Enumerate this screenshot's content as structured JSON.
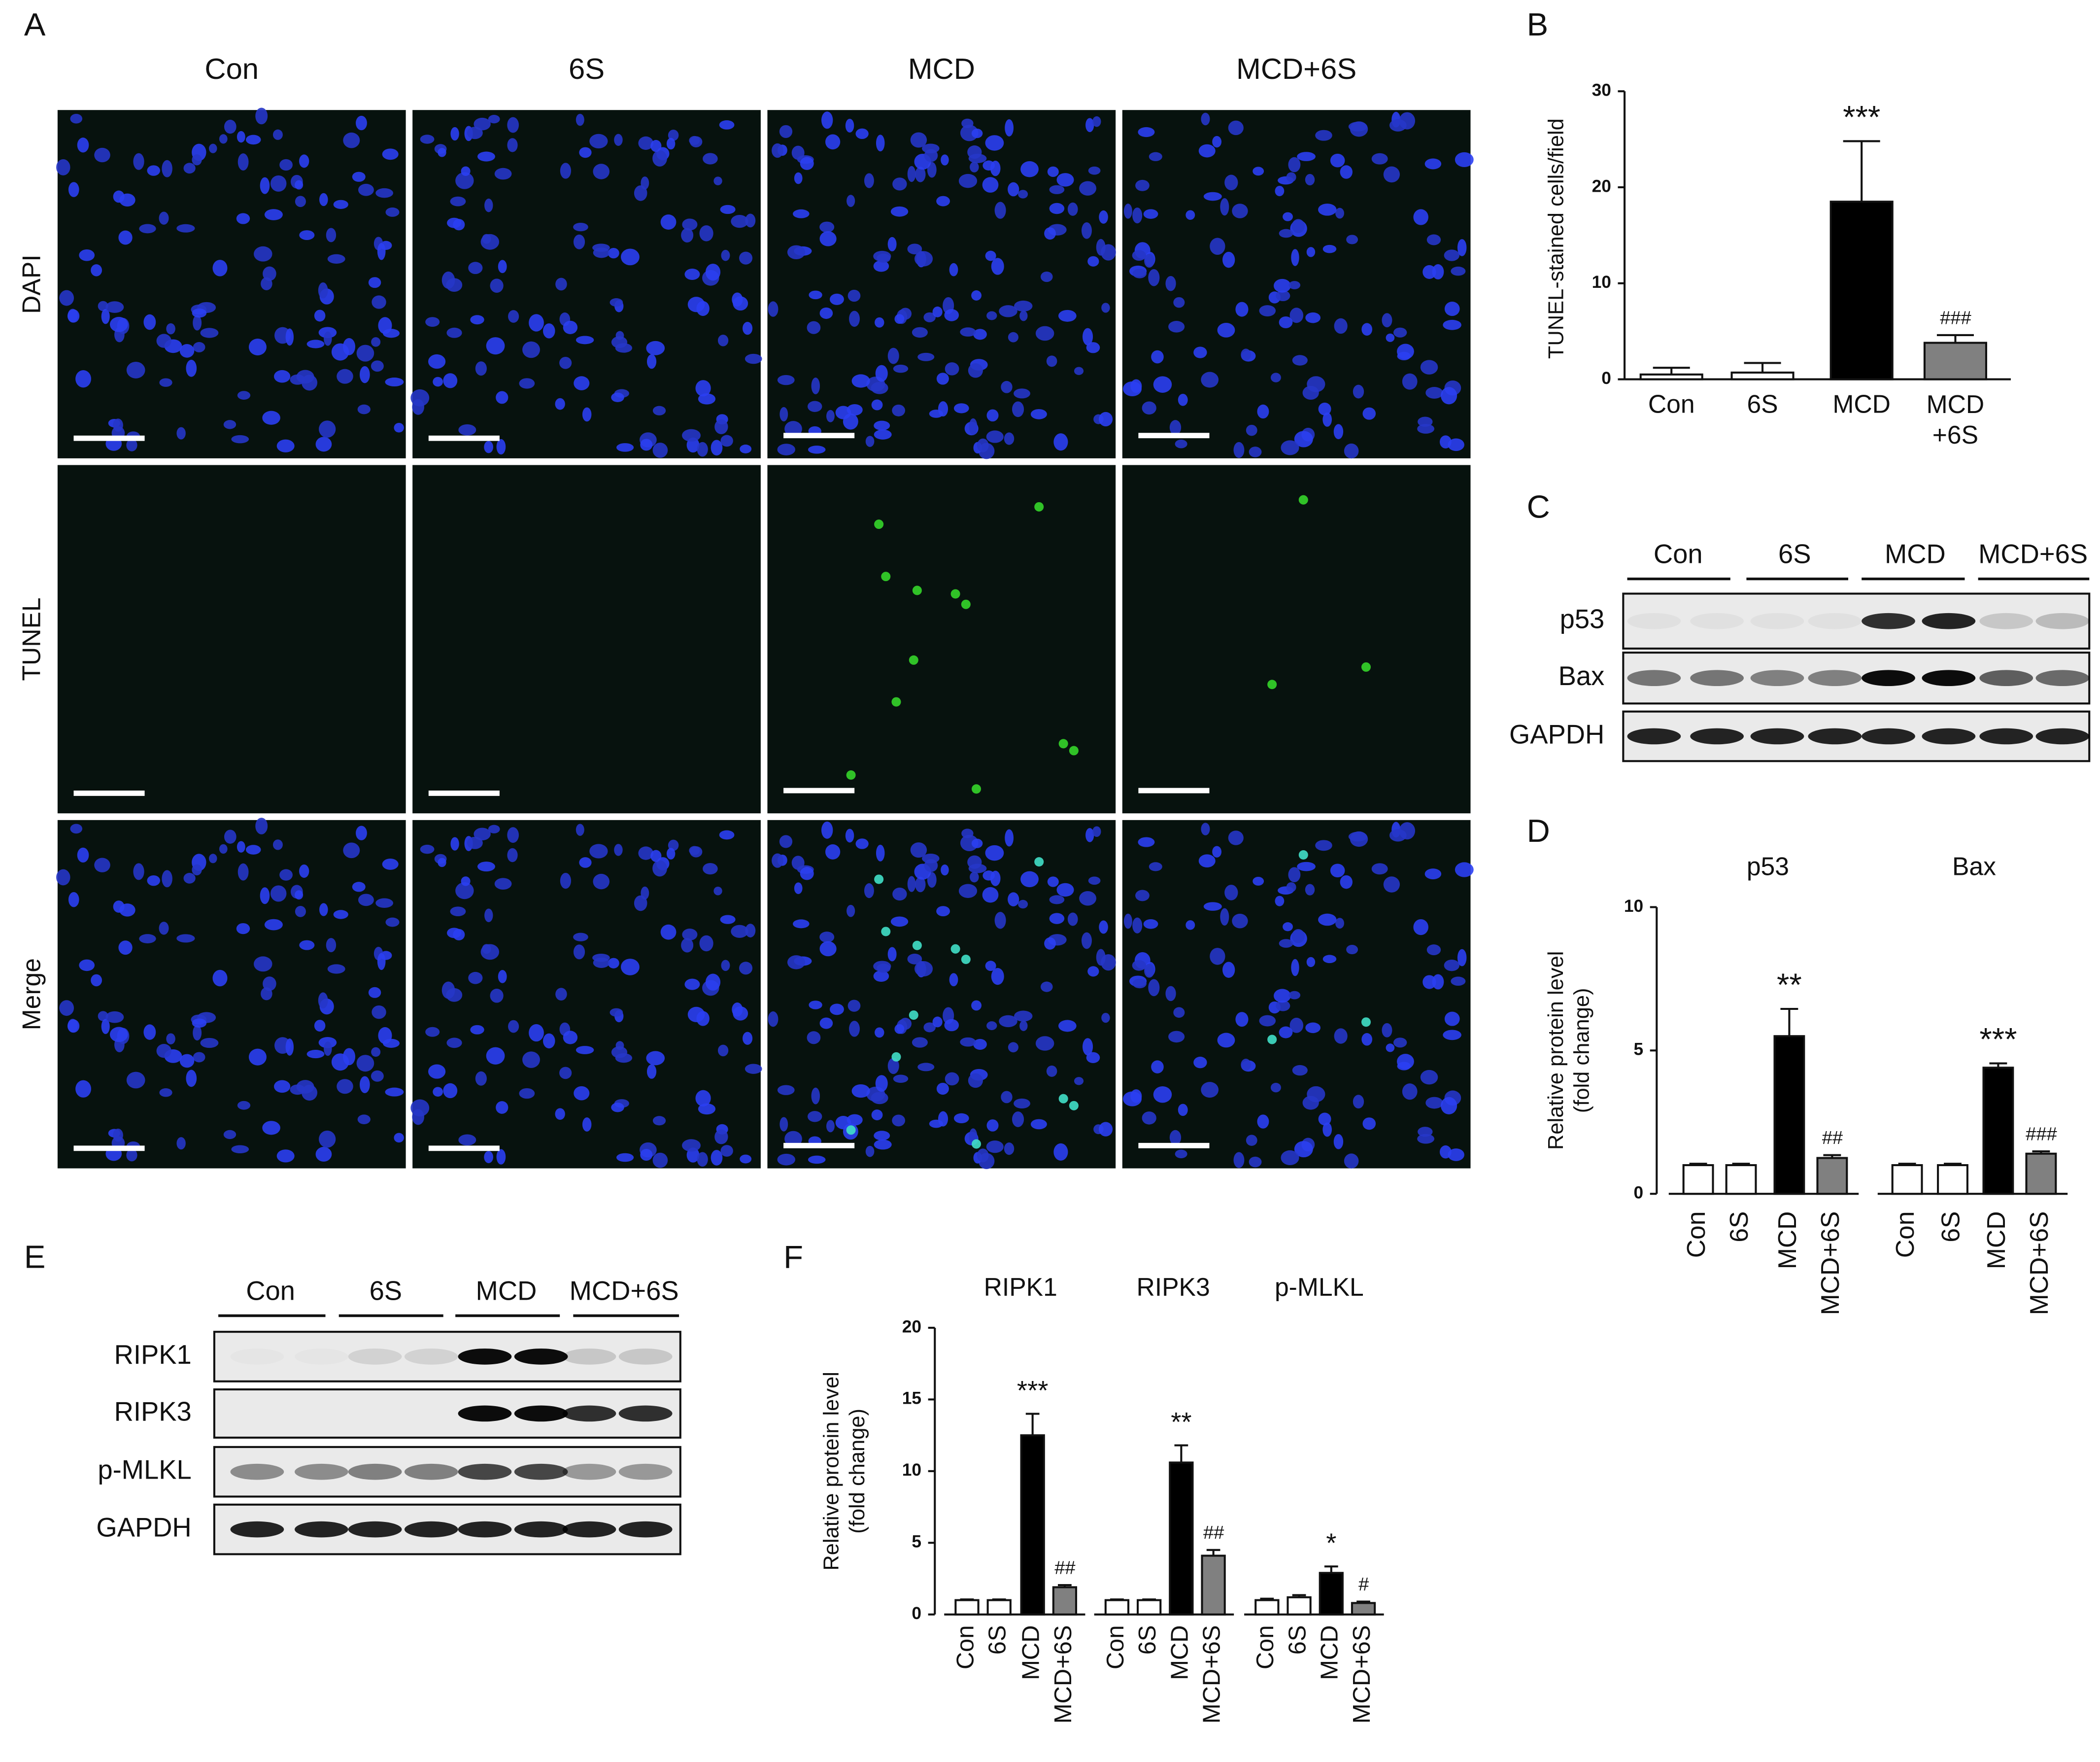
{
  "panels": {
    "letters": [
      "A",
      "B",
      "C",
      "D",
      "E",
      "F"
    ],
    "A": {
      "columns": [
        "Con",
        "6S",
        "MCD",
        "MCD+6S"
      ],
      "rows": [
        "DAPI",
        "TUNEL",
        "Merge"
      ]
    },
    "C": {
      "lanes": [
        "Con",
        "6S",
        "MCD",
        "MCD+6S"
      ],
      "rows": [
        "p53",
        "Bax",
        "GAPDH"
      ]
    },
    "E": {
      "lanes": [
        "Con",
        "6S",
        "MCD",
        "MCD+6S"
      ],
      "rows": [
        "RIPK1",
        "RIPK3",
        "p-MLKL",
        "GAPDH"
      ]
    }
  },
  "chart_data": [
    {
      "type": "bar",
      "ylabel": "TUNEL-stained cells/field",
      "categories": [
        "Con",
        "6S",
        "MCD",
        "MCD\n+6S"
      ],
      "values": [
        0.5,
        0.7,
        18.5,
        3.8
      ],
      "errors": [
        0.7,
        1.0,
        6.3,
        0.8
      ],
      "annotations": [
        null,
        null,
        "***",
        "###"
      ],
      "colors": [
        "#ffffff",
        "#ffffff",
        "#000000",
        "#808080"
      ],
      "ylim": [
        0,
        30
      ],
      "yticks": [
        0,
        10,
        20,
        30
      ]
    },
    {
      "type": "bar",
      "ylabel": "Relative protein level\n(fold change)",
      "groups": [
        {
          "name": "p53",
          "categories": [
            "Con",
            "6S",
            "MCD",
            "MCD+6S"
          ],
          "values": [
            1,
            1,
            5.5,
            1.25
          ],
          "errors": [
            0.05,
            0.05,
            0.95,
            0.1
          ],
          "annotations": [
            null,
            null,
            "**",
            "##"
          ]
        },
        {
          "name": "Bax",
          "categories": [
            "Con",
            "6S",
            "MCD",
            "MCD+6S"
          ],
          "values": [
            1,
            1,
            4.4,
            1.4
          ],
          "errors": [
            0.05,
            0.05,
            0.15,
            0.08
          ],
          "annotations": [
            null,
            null,
            "***",
            "###"
          ]
        }
      ],
      "colors": [
        "#ffffff",
        "#ffffff",
        "#000000",
        "#808080"
      ],
      "ylim": [
        0,
        10
      ],
      "yticks": [
        0,
        5,
        10
      ]
    },
    {
      "type": "bar",
      "ylabel": "Relative protein level\n(fold change)",
      "groups": [
        {
          "name": "RIPK1",
          "categories": [
            "Con",
            "6S",
            "MCD",
            "MCD+6S"
          ],
          "values": [
            1,
            1,
            12.5,
            1.9
          ],
          "errors": [
            0.05,
            0.05,
            1.5,
            0.15
          ],
          "annotations": [
            null,
            null,
            "***",
            "##"
          ]
        },
        {
          "name": "RIPK3",
          "categories": [
            "Con",
            "6S",
            "MCD",
            "MCD+6S"
          ],
          "values": [
            1,
            1,
            10.6,
            4.1
          ],
          "errors": [
            0.05,
            0.05,
            1.2,
            0.4
          ],
          "annotations": [
            null,
            null,
            "**",
            "##"
          ]
        },
        {
          "name": "p-MLKL",
          "categories": [
            "Con",
            "6S",
            "MCD",
            "MCD+6S"
          ],
          "values": [
            1,
            1.2,
            2.9,
            0.8
          ],
          "errors": [
            0.1,
            0.15,
            0.45,
            0.1
          ],
          "annotations": [
            null,
            null,
            "*",
            "#"
          ]
        }
      ],
      "colors": [
        "#ffffff",
        "#ffffff",
        "#000000",
        "#808080"
      ],
      "ylim": [
        0,
        20
      ],
      "yticks": [
        0,
        5,
        10,
        15,
        20
      ]
    }
  ]
}
